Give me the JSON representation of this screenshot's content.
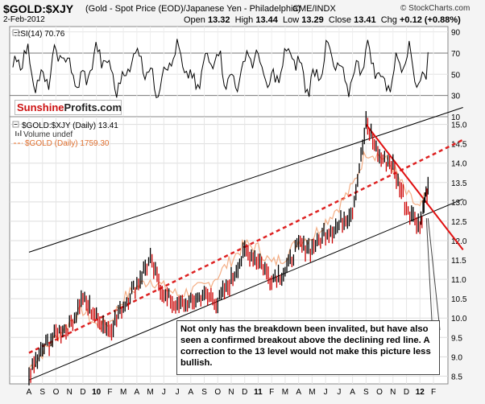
{
  "header": {
    "symbol": "$GOLD:$XJY",
    "description": "(Gold - Spot Price (EOD)/Japanese Yen - Philadelphia)",
    "exchange": "CME/INDX",
    "copyright": "© StockCharts.com",
    "date": "2-Feb-2012",
    "ohlc": {
      "open_label": "Open",
      "open": "13.32",
      "high_label": "High",
      "high": "13.44",
      "low_label": "Low",
      "low": "13.29",
      "close_label": "Close",
      "close": "13.41",
      "chg_label": "Chg",
      "chg": "+0.12 (+0.88%)"
    }
  },
  "rsi_panel": {
    "label": "RSI(14) 70.76",
    "ticks": [
      "90",
      "70",
      "50",
      "30",
      "10"
    ],
    "tick_values": [
      90,
      70,
      50,
      30,
      10
    ],
    "ylim": [
      10,
      95
    ],
    "reference_lines": [
      70,
      30
    ],
    "last_value": 70.76
  },
  "logo": {
    "part1": "Sunshine",
    "part2": "Profits.com"
  },
  "legend": {
    "main": "$GOLD:$XJY (Daily) 13.41",
    "volume": "Volume undef",
    "overlay": "$GOLD (Daily) 1759.30"
  },
  "annotation": {
    "text": "Not only has the breakdown been invalited, but have also seen a confirmed breakout above the declining red line. A correction to the 13 level would not make this picture less bullish."
  },
  "colors": {
    "price": "#000000",
    "price_down": "#cc0000",
    "overlay": "#f2a070",
    "channel": "#000000",
    "trend_dashed": "#dd2222",
    "decline_line": "#e01010",
    "logo_red": "#cc1111"
  },
  "chart_data": {
    "type": "line",
    "x_tick_labels": [
      "A",
      "S",
      "O",
      "N",
      "D",
      "10",
      "F",
      "M",
      "A",
      "M",
      "J",
      "J",
      "A",
      "S",
      "O",
      "N",
      "D",
      "11",
      "F",
      "M",
      "A",
      "M",
      "J",
      "J",
      "A",
      "S",
      "O",
      "N",
      "D",
      "12",
      "F"
    ],
    "y_ticks": [
      "15.0",
      "14.5",
      "14.0",
      "13.5",
      "13.0",
      "12.5",
      "12.0",
      "11.5",
      "11.0",
      "10.5",
      "10.0",
      "9.5",
      "9.0",
      "8.5"
    ],
    "ylim": [
      8.3,
      15.2
    ],
    "series": [
      {
        "name": "$GOLD:$XJY (Daily)",
        "x": [
          0,
          1,
          2,
          3,
          4,
          5,
          6,
          7,
          8,
          9,
          10,
          11,
          12,
          13,
          14,
          15,
          16,
          17,
          18,
          19,
          20,
          21,
          22,
          23,
          24,
          25,
          26,
          27,
          28,
          29,
          29.6
        ],
        "values": [
          8.5,
          9.2,
          9.6,
          9.8,
          10.5,
          10.0,
          9.7,
          10.3,
          10.9,
          11.5,
          10.6,
          10.3,
          10.4,
          10.6,
          10.4,
          11.0,
          11.7,
          11.5,
          11.0,
          11.2,
          11.9,
          11.8,
          12.2,
          12.4,
          12.8,
          15.0,
          14.2,
          13.9,
          12.9,
          12.4,
          13.41
        ]
      },
      {
        "name": "$GOLD (Daily)",
        "x": [
          0,
          1,
          2,
          3,
          4,
          5,
          6,
          7,
          8,
          9,
          10,
          11,
          12,
          13,
          14,
          15,
          16,
          17,
          18,
          19,
          20,
          21,
          22,
          23,
          24,
          25,
          26,
          27,
          28,
          29,
          29.6
        ],
        "values": [
          8.7,
          9.1,
          9.5,
          9.9,
          10.2,
          9.8,
          9.9,
          10.5,
          10.8,
          11.0,
          10.8,
          10.6,
          10.7,
          10.8,
          11.1,
          11.5,
          11.9,
          11.8,
          11.4,
          11.6,
          12.0,
          12.1,
          12.5,
          12.9,
          13.4,
          14.3,
          14.2,
          13.9,
          13.2,
          12.8,
          13.3
        ]
      }
    ],
    "trendlines": [
      {
        "name": "channel-upper",
        "x": [
          0,
          31
        ],
        "values": [
          11.7,
          15.3
        ]
      },
      {
        "name": "channel-lower",
        "x": [
          0,
          31
        ],
        "values": [
          8.4,
          12.9
        ]
      },
      {
        "name": "dashed-support",
        "x": [
          0,
          31
        ],
        "values": [
          9.1,
          14.4
        ]
      },
      {
        "name": "declining-red",
        "x": [
          25,
          31
        ],
        "values": [
          15.0,
          12.3
        ]
      }
    ],
    "title": "$GOLD:$XJY",
    "grid": true
  }
}
